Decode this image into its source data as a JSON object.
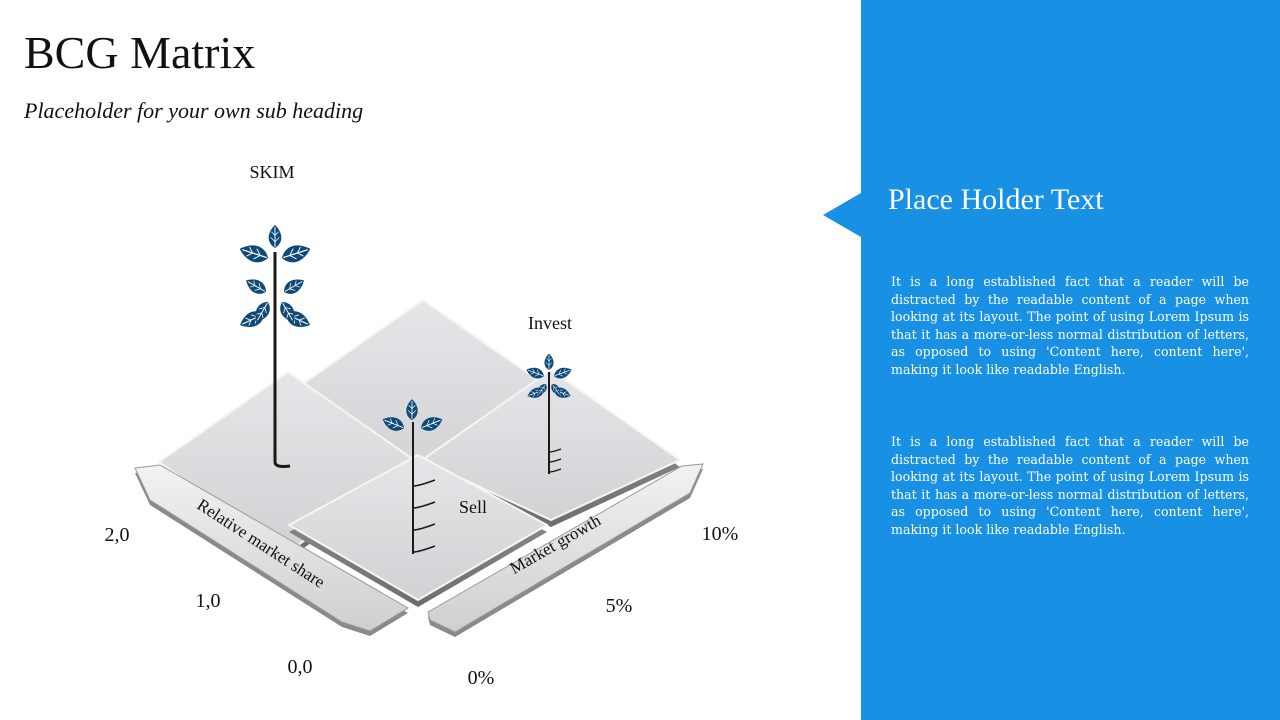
{
  "title": "BCG Matrix",
  "subtitle": "Placeholder for your own sub heading",
  "diagram": {
    "quadrants": {
      "top": "SKIM",
      "right": "Invest",
      "center": "Sell"
    },
    "axis_left_label": "Relative market share",
    "axis_right_label": "Market growth",
    "left_ticks": [
      "2,0",
      "1,0",
      "0,0"
    ],
    "right_ticks": [
      "10%",
      "5%",
      "0%"
    ],
    "icon_color": "#0e4a78",
    "tile_color": "#d9d8db",
    "panel_color": "#1890e3"
  },
  "panel": {
    "title": "Place Holder Text",
    "paragraph1": "It is a long established fact that a reader will be distracted by the readable content of a page when looking at its layout. The point of using Lorem Ipsum is that it has a more-or-less normal distribution of letters, as opposed to using 'Content here, content here', making it look like readable English.",
    "paragraph2": "It is a long established fact that a reader will be distracted by the readable content of a page when looking at its layout. The point of using Lorem Ipsum is that it has a more-or-less normal distribution of letters, as opposed to using 'Content here, content here', making it look like readable English."
  }
}
